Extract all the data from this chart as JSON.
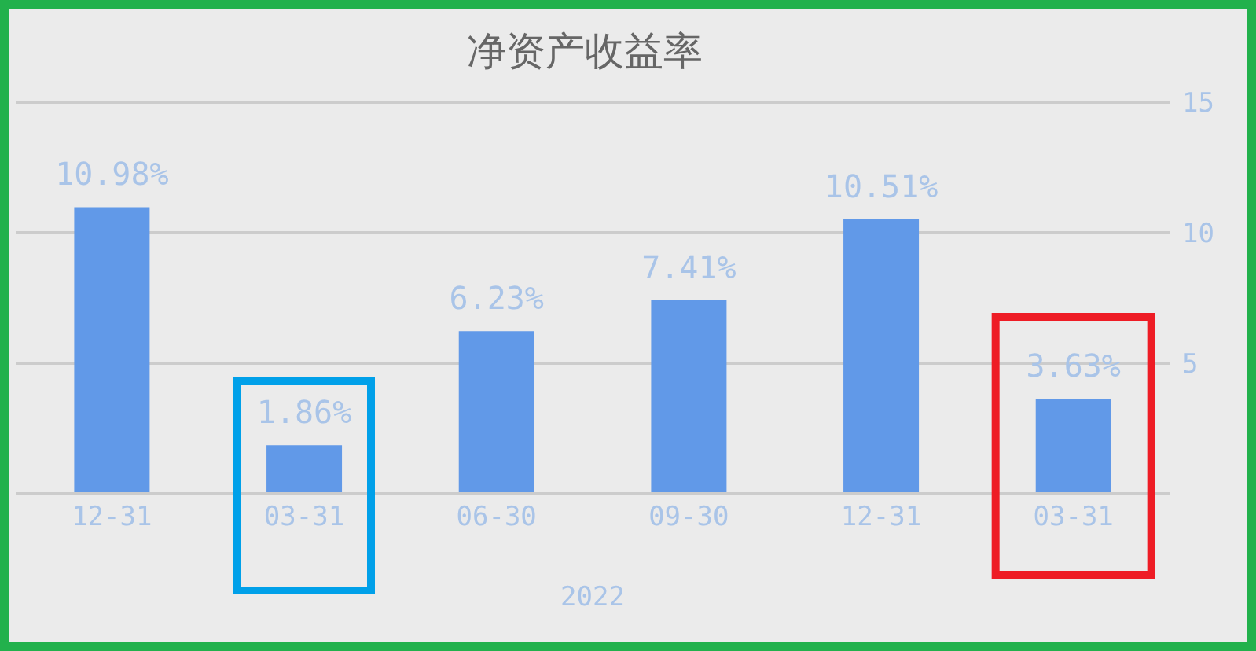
{
  "chart_data": {
    "type": "bar",
    "title": "净资产收益率",
    "categories": [
      "12-31",
      "03-31",
      "06-30",
      "09-30",
      "12-31",
      "03-31"
    ],
    "values": [
      10.98,
      1.86,
      6.23,
      7.41,
      10.51,
      3.63
    ],
    "value_labels": [
      "10.98%",
      "1.86%",
      "6.23%",
      "7.41%",
      "10.51%",
      "3.63%"
    ],
    "color": "#6199e8",
    "ylim": [
      0,
      15
    ],
    "yticks": [
      {
        "value": 0,
        "label": null
      },
      5,
      10,
      15
    ],
    "grid": "y",
    "annotations": [
      "2022"
    ]
  }
}
